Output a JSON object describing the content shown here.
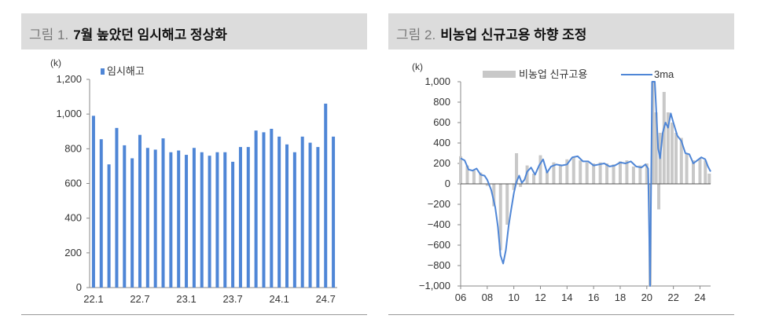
{
  "figures": [
    {
      "number": "그림 1.",
      "title": "7월 높았던 임시해고 정상화",
      "chart_data": {
        "type": "bar",
        "unit_label": "(k)",
        "legend": [
          "임시해고"
        ],
        "legend_placement": "top-left",
        "colors": {
          "bar": "#4f86d6"
        },
        "ylim": [
          0,
          1200
        ],
        "yticks": [
          "0",
          "200",
          "400",
          "600",
          "800",
          "1,000",
          "1,200"
        ],
        "x_tick_labels": [
          "22.1",
          "22.7",
          "23.1",
          "23.7",
          "24.1",
          "24.7"
        ],
        "categories": [
          "22.1",
          "22.2",
          "22.3",
          "22.4",
          "22.5",
          "22.6",
          "22.7",
          "22.8",
          "22.9",
          "22.10",
          "22.11",
          "22.12",
          "23.1",
          "23.2",
          "23.3",
          "23.4",
          "23.5",
          "23.6",
          "23.7",
          "23.8",
          "23.9",
          "23.10",
          "23.11",
          "23.12",
          "24.1",
          "24.2",
          "24.3",
          "24.4",
          "24.5",
          "24.6",
          "24.7",
          "24.8"
        ],
        "series": [
          {
            "name": "임시해고",
            "values": [
              990,
              855,
              710,
              920,
              820,
              745,
              880,
              805,
              795,
              860,
              780,
              790,
              765,
              805,
              780,
              760,
              780,
              780,
              725,
              810,
              810,
              905,
              895,
              915,
              870,
              825,
              780,
              870,
              835,
              810,
              1060,
              870
            ]
          }
        ],
        "grid": false
      }
    },
    {
      "number": "그림 2.",
      "title": "비농업 신규고용 하향 조정",
      "chart_data": {
        "type": "bar",
        "unit_label": "(k)",
        "legend": [
          "비농업 신규고용",
          "3ma"
        ],
        "legend_placement": "top",
        "colors": {
          "bars": "#c8c8c8",
          "line": "#4f86d6"
        },
        "ylim": [
          -1000,
          1000
        ],
        "yticks": [
          "1,000",
          "800",
          "600",
          "400",
          "200",
          "0",
          "−200",
          "−400",
          "−600",
          "−800",
          "−1,000"
        ],
        "x_tick_labels": [
          "06",
          "08",
          "10",
          "12",
          "14",
          "16",
          "18",
          "20",
          "22",
          "24"
        ],
        "x_range": [
          2006,
          2024.8
        ],
        "series": [
          {
            "name": "비농업 신규고용",
            "style": "bars",
            "points": [
              [
                2006.0,
                270
              ],
              [
                2006.5,
                180
              ],
              [
                2007.0,
                130
              ],
              [
                2007.5,
                110
              ],
              [
                2008.0,
                -20
              ],
              [
                2008.5,
                -220
              ],
              [
                2009.0,
                -650
              ],
              [
                2009.5,
                -400
              ],
              [
                2010.0,
                -60
              ],
              [
                2010.2,
                300
              ],
              [
                2010.5,
                -30
              ],
              [
                2011.0,
                180
              ],
              [
                2011.5,
                100
              ],
              [
                2012.0,
                280
              ],
              [
                2012.5,
                120
              ],
              [
                2013.0,
                210
              ],
              [
                2013.5,
                190
              ],
              [
                2014.0,
                240
              ],
              [
                2014.5,
                260
              ],
              [
                2015.0,
                230
              ],
              [
                2015.5,
                210
              ],
              [
                2016.0,
                200
              ],
              [
                2016.5,
                210
              ],
              [
                2017.0,
                200
              ],
              [
                2017.5,
                190
              ],
              [
                2018.0,
                220
              ],
              [
                2018.5,
                230
              ],
              [
                2019.0,
                170
              ],
              [
                2019.5,
                180
              ],
              [
                2020.0,
                200
              ],
              [
                2020.25,
                -1000
              ],
              [
                2020.45,
                1000
              ],
              [
                2020.7,
                700
              ],
              [
                2020.9,
                -250
              ],
              [
                2021.0,
                500
              ],
              [
                2021.3,
                900
              ],
              [
                2021.6,
                700
              ],
              [
                2021.9,
                600
              ],
              [
                2022.2,
                500
              ],
              [
                2022.6,
                450
              ],
              [
                2023.0,
                300
              ],
              [
                2023.5,
                230
              ],
              [
                2024.0,
                250
              ],
              [
                2024.4,
                230
              ],
              [
                2024.7,
                100
              ]
            ]
          },
          {
            "name": "3ma",
            "style": "line",
            "points": [
              [
                2006.0,
                250
              ],
              [
                2006.3,
                230
              ],
              [
                2006.6,
                140
              ],
              [
                2006.9,
                130
              ],
              [
                2007.2,
                150
              ],
              [
                2007.5,
                90
              ],
              [
                2007.8,
                80
              ],
              [
                2008.0,
                40
              ],
              [
                2008.3,
                -60
              ],
              [
                2008.6,
                -230
              ],
              [
                2008.8,
                -420
              ],
              [
                2009.0,
                -700
              ],
              [
                2009.2,
                -780
              ],
              [
                2009.4,
                -650
              ],
              [
                2009.6,
                -420
              ],
              [
                2009.8,
                -250
              ],
              [
                2010.0,
                -90
              ],
              [
                2010.2,
                20
              ],
              [
                2010.4,
                80
              ],
              [
                2010.6,
                10
              ],
              [
                2010.8,
                40
              ],
              [
                2011.0,
                120
              ],
              [
                2011.3,
                160
              ],
              [
                2011.6,
                90
              ],
              [
                2011.9,
                180
              ],
              [
                2012.2,
                240
              ],
              [
                2012.5,
                110
              ],
              [
                2012.8,
                170
              ],
              [
                2013.2,
                190
              ],
              [
                2013.6,
                180
              ],
              [
                2014.0,
                190
              ],
              [
                2014.4,
                260
              ],
              [
                2014.8,
                270
              ],
              [
                2015.2,
                220
              ],
              [
                2015.6,
                220
              ],
              [
                2016.0,
                180
              ],
              [
                2016.4,
                190
              ],
              [
                2016.8,
                200
              ],
              [
                2017.2,
                170
              ],
              [
                2017.6,
                180
              ],
              [
                2018.0,
                210
              ],
              [
                2018.4,
                200
              ],
              [
                2018.8,
                220
              ],
              [
                2019.2,
                170
              ],
              [
                2019.6,
                160
              ],
              [
                2019.9,
                190
              ],
              [
                2020.1,
                150
              ],
              [
                2020.25,
                -1000
              ],
              [
                2020.4,
                1000
              ],
              [
                2020.6,
                1000
              ],
              [
                2020.85,
                350
              ],
              [
                2021.0,
                250
              ],
              [
                2021.2,
                500
              ],
              [
                2021.4,
                600
              ],
              [
                2021.6,
                550
              ],
              [
                2021.8,
                690
              ],
              [
                2022.0,
                600
              ],
              [
                2022.3,
                470
              ],
              [
                2022.6,
                420
              ],
              [
                2022.9,
                300
              ],
              [
                2023.2,
                290
              ],
              [
                2023.5,
                200
              ],
              [
                2023.8,
                230
              ],
              [
                2024.1,
                260
              ],
              [
                2024.4,
                240
              ],
              [
                2024.6,
                170
              ],
              [
                2024.8,
                120
              ]
            ]
          }
        ],
        "grid": false
      }
    }
  ]
}
